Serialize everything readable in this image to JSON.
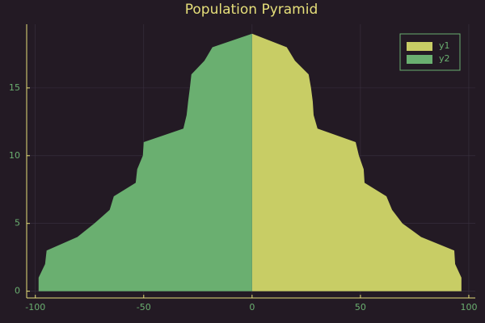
{
  "chart_data": {
    "type": "area",
    "orientation": "horizontal",
    "title": "Population Pyramid",
    "y": [
      0,
      1,
      2,
      3,
      4,
      5,
      6,
      7,
      8,
      9,
      10,
      11,
      12,
      13,
      14,
      15,
      16,
      17,
      18,
      19
    ],
    "series": [
      {
        "name": "y1",
        "color": "#c8cd65",
        "values": [
          96.6,
          96.6,
          93.7,
          93.3,
          78,
          69.4,
          64.6,
          62,
          51.9,
          51.5,
          49.3,
          47.8,
          30.2,
          28.4,
          28,
          27.2,
          26.1,
          19.8,
          16,
          0
        ]
      },
      {
        "name": "y2",
        "color": "#6aaf70",
        "values": [
          -98.5,
          -98.5,
          -95.5,
          -94.8,
          -80.6,
          -72.8,
          -65.7,
          -63.8,
          -53.7,
          -53,
          -50.4,
          -50,
          -31.7,
          -30.2,
          -29.5,
          -28.7,
          -28,
          -22,
          -18.3,
          0
        ]
      }
    ],
    "xlim": [
      -104,
      103
    ],
    "xticks": [
      -100,
      -50,
      0,
      50,
      100
    ],
    "ylim": [
      -0.5,
      19.7
    ],
    "yticks": [
      0,
      5,
      10,
      15
    ],
    "grid": true,
    "legend": "top-right"
  }
}
